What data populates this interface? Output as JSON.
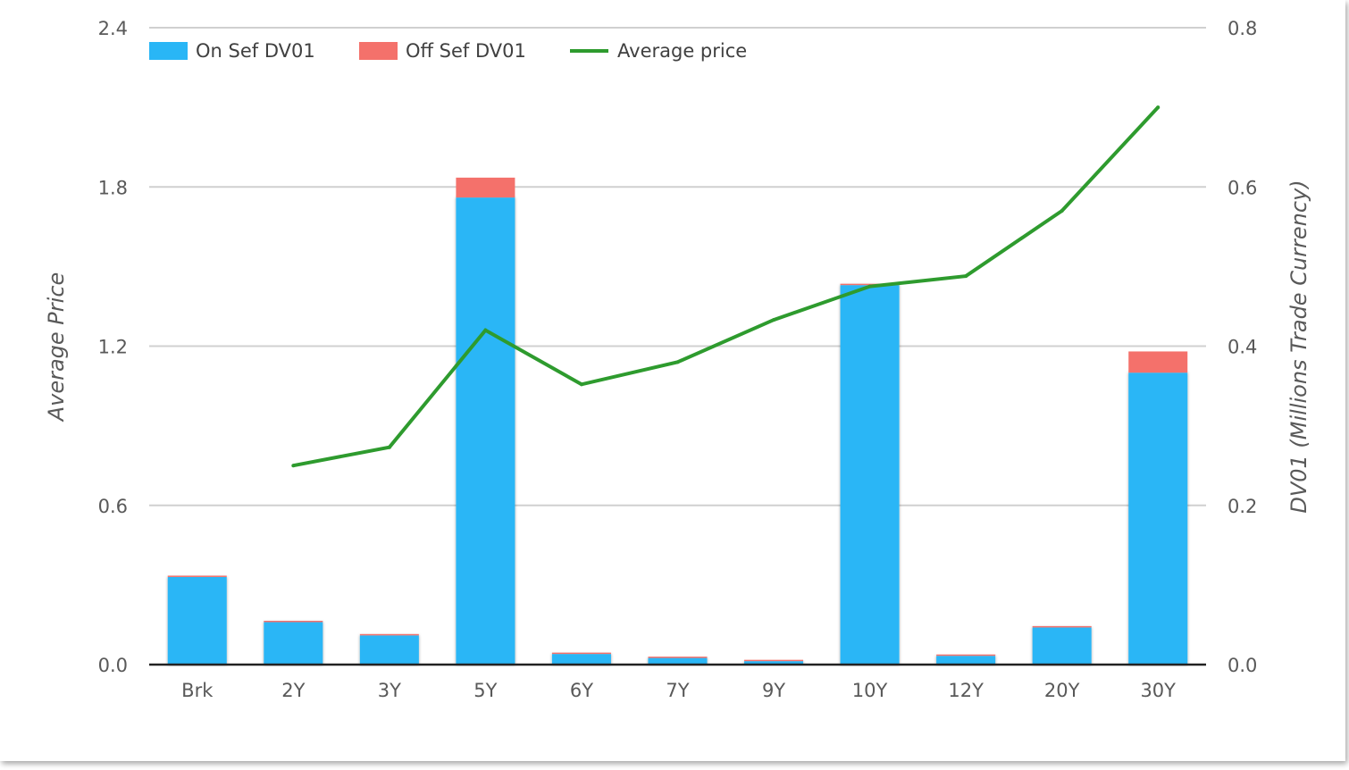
{
  "chart_data": {
    "type": "bar",
    "stacked": true,
    "categories": [
      "Brk",
      "2Y",
      "3Y",
      "5Y",
      "6Y",
      "7Y",
      "9Y",
      "10Y",
      "12Y",
      "20Y",
      "30Y"
    ],
    "series": [
      {
        "name": "On Sef DV01",
        "kind": "bar",
        "axis": "left",
        "color": "#29B6F6",
        "values": [
          0.33,
          0.16,
          0.11,
          1.76,
          0.04,
          0.025,
          0.013,
          1.43,
          0.033,
          0.14,
          1.1
        ]
      },
      {
        "name": "Off Sef DV01",
        "kind": "bar",
        "axis": "left",
        "color": "#F4716B",
        "values": [
          0.005,
          0.005,
          0.005,
          0.075,
          0.005,
          0.005,
          0.005,
          0.005,
          0.005,
          0.005,
          0.08
        ]
      },
      {
        "name": "Average price",
        "kind": "line",
        "axis": "right",
        "color": "#2E9B2E",
        "values": [
          null,
          0.25,
          0.273,
          0.42,
          0.352,
          0.38,
          0.433,
          0.475,
          0.488,
          0.57,
          0.7
        ]
      }
    ],
    "y_left": {
      "label": "Average Price",
      "ticks": [
        "0.0",
        "0.6",
        "1.2",
        "1.8",
        "2.4"
      ],
      "range": [
        0,
        2.4
      ]
    },
    "y_right": {
      "label": "DV01 (Millions Trade Currency)",
      "ticks": [
        "0.0",
        "0.2",
        "0.4",
        "0.6",
        "0.8"
      ],
      "range": [
        0,
        0.8
      ]
    },
    "grid": true,
    "legend_position": "top-left"
  }
}
